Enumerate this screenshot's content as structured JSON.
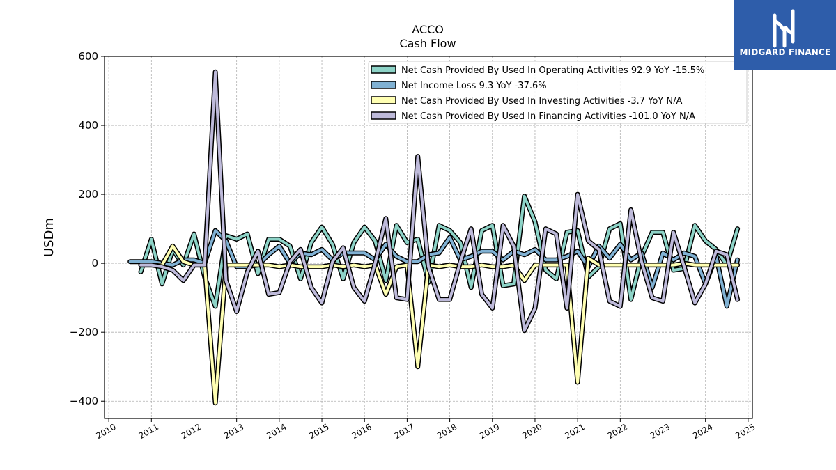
{
  "chart_data": {
    "type": "line",
    "title": "ACCO",
    "subtitle": "Cash Flow",
    "xlabel": "",
    "ylabel": "USDm",
    "xlim": [
      2009.9,
      2025.1
    ],
    "ylim": [
      -450,
      600
    ],
    "yticks": [
      -400,
      -200,
      0,
      200,
      400,
      600
    ],
    "ytick_labels": [
      "−400",
      "−200",
      "0",
      "200",
      "400",
      "600"
    ],
    "xticks": [
      2010,
      2011,
      2012,
      2013,
      2014,
      2015,
      2016,
      2017,
      2018,
      2019,
      2020,
      2021,
      2022,
      2023,
      2024,
      2025
    ],
    "grid": true,
    "legend_position": "top-right",
    "series": [
      {
        "name": "Net Cash Provided By Used In Operating Activities  92.9 YoY -15.5%",
        "color": "#8dd3c7",
        "points": [
          [
            2010.75,
            -25
          ],
          [
            2011.0,
            70
          ],
          [
            2011.25,
            -60
          ],
          [
            2011.5,
            40
          ],
          [
            2011.75,
            -5
          ],
          [
            2012.0,
            85
          ],
          [
            2012.25,
            -40
          ],
          [
            2012.5,
            -125
          ],
          [
            2012.75,
            80
          ],
          [
            2013.0,
            70
          ],
          [
            2013.25,
            85
          ],
          [
            2013.5,
            -30
          ],
          [
            2013.75,
            70
          ],
          [
            2014.0,
            70
          ],
          [
            2014.25,
            50
          ],
          [
            2014.5,
            -45
          ],
          [
            2014.75,
            60
          ],
          [
            2015.0,
            105
          ],
          [
            2015.25,
            55
          ],
          [
            2015.5,
            -45
          ],
          [
            2015.75,
            60
          ],
          [
            2016.0,
            105
          ],
          [
            2016.25,
            65
          ],
          [
            2016.5,
            -50
          ],
          [
            2016.75,
            110
          ],
          [
            2017.0,
            60
          ],
          [
            2017.25,
            70
          ],
          [
            2017.5,
            -55
          ],
          [
            2017.75,
            110
          ],
          [
            2018.0,
            95
          ],
          [
            2018.25,
            60
          ],
          [
            2018.5,
            -70
          ],
          [
            2018.75,
            95
          ],
          [
            2019.0,
            110
          ],
          [
            2019.25,
            -65
          ],
          [
            2019.5,
            -60
          ],
          [
            2019.75,
            195
          ],
          [
            2020.0,
            120
          ],
          [
            2020.25,
            -20
          ],
          [
            2020.5,
            -45
          ],
          [
            2020.75,
            90
          ],
          [
            2021.0,
            95
          ],
          [
            2021.25,
            -40
          ],
          [
            2021.5,
            -10
          ],
          [
            2021.75,
            100
          ],
          [
            2022.0,
            115
          ],
          [
            2022.25,
            -105
          ],
          [
            2022.5,
            20
          ],
          [
            2022.75,
            90
          ],
          [
            2023.0,
            90
          ],
          [
            2023.25,
            -20
          ],
          [
            2023.5,
            -15
          ],
          [
            2023.75,
            110
          ],
          [
            2024.0,
            65
          ],
          [
            2024.25,
            40
          ],
          [
            2024.5,
            -5
          ],
          [
            2024.75,
            100
          ]
        ]
      },
      {
        "name": "Net Income Loss  9.3 YoY -37.6%",
        "color": "#80b1d3",
        "points": [
          [
            2010.5,
            5
          ],
          [
            2010.75,
            5
          ],
          [
            2011.0,
            5
          ],
          [
            2011.25,
            0
          ],
          [
            2011.5,
            -5
          ],
          [
            2011.75,
            10
          ],
          [
            2012.0,
            10
          ],
          [
            2012.25,
            0
          ],
          [
            2012.5,
            95
          ],
          [
            2012.75,
            65
          ],
          [
            2013.0,
            -10
          ],
          [
            2013.25,
            -10
          ],
          [
            2013.5,
            -5
          ],
          [
            2013.75,
            25
          ],
          [
            2014.0,
            50
          ],
          [
            2014.25,
            0
          ],
          [
            2014.5,
            30
          ],
          [
            2014.75,
            25
          ],
          [
            2015.0,
            40
          ],
          [
            2015.25,
            10
          ],
          [
            2015.5,
            30
          ],
          [
            2015.75,
            30
          ],
          [
            2016.0,
            30
          ],
          [
            2016.25,
            10
          ],
          [
            2016.5,
            55
          ],
          [
            2016.75,
            20
          ],
          [
            2017.0,
            5
          ],
          [
            2017.25,
            5
          ],
          [
            2017.5,
            25
          ],
          [
            2017.75,
            30
          ],
          [
            2018.0,
            75
          ],
          [
            2018.25,
            10
          ],
          [
            2018.5,
            20
          ],
          [
            2018.75,
            35
          ],
          [
            2019.0,
            35
          ],
          [
            2019.25,
            10
          ],
          [
            2019.5,
            35
          ],
          [
            2019.75,
            25
          ],
          [
            2020.0,
            40
          ],
          [
            2020.25,
            10
          ],
          [
            2020.5,
            10
          ],
          [
            2020.75,
            20
          ],
          [
            2021.0,
            35
          ],
          [
            2021.25,
            -10
          ],
          [
            2021.5,
            50
          ],
          [
            2021.75,
            15
          ],
          [
            2022.0,
            55
          ],
          [
            2022.25,
            10
          ],
          [
            2022.5,
            30
          ],
          [
            2022.75,
            -70
          ],
          [
            2023.0,
            30
          ],
          [
            2023.25,
            10
          ],
          [
            2023.5,
            30
          ],
          [
            2023.75,
            20
          ],
          [
            2024.0,
            -60
          ],
          [
            2024.25,
            20
          ],
          [
            2024.5,
            -125
          ],
          [
            2024.75,
            10
          ]
        ]
      },
      {
        "name": "Net Cash Provided By Used In Investing Activities  -3.7 YoY N/A",
        "color": "#ffffb3",
        "points": [
          [
            2010.75,
            -5
          ],
          [
            2011.0,
            -5
          ],
          [
            2011.25,
            -5
          ],
          [
            2011.5,
            50
          ],
          [
            2011.75,
            5
          ],
          [
            2012.0,
            -5
          ],
          [
            2012.25,
            -5
          ],
          [
            2012.5,
            -405
          ],
          [
            2012.75,
            -5
          ],
          [
            2013.0,
            -5
          ],
          [
            2013.25,
            -5
          ],
          [
            2013.5,
            -5
          ],
          [
            2013.75,
            -5
          ],
          [
            2014.0,
            -10
          ],
          [
            2014.25,
            -5
          ],
          [
            2014.5,
            -10
          ],
          [
            2014.75,
            -10
          ],
          [
            2015.0,
            -10
          ],
          [
            2015.25,
            -5
          ],
          [
            2015.5,
            -10
          ],
          [
            2015.75,
            -5
          ],
          [
            2016.0,
            -10
          ],
          [
            2016.25,
            -5
          ],
          [
            2016.5,
            -90
          ],
          [
            2016.75,
            -10
          ],
          [
            2017.0,
            -5
          ],
          [
            2017.25,
            -300
          ],
          [
            2017.5,
            -5
          ],
          [
            2017.75,
            -10
          ],
          [
            2018.0,
            -5
          ],
          [
            2018.25,
            -10
          ],
          [
            2018.5,
            -10
          ],
          [
            2018.75,
            -5
          ],
          [
            2019.0,
            -10
          ],
          [
            2019.25,
            -10
          ],
          [
            2019.5,
            -5
          ],
          [
            2019.75,
            -50
          ],
          [
            2020.0,
            -5
          ],
          [
            2020.25,
            -5
          ],
          [
            2020.5,
            -5
          ],
          [
            2020.75,
            -5
          ],
          [
            2021.0,
            -345
          ],
          [
            2021.25,
            15
          ],
          [
            2021.5,
            -5
          ],
          [
            2021.75,
            -5
          ],
          [
            2022.0,
            -5
          ],
          [
            2022.25,
            -5
          ],
          [
            2022.5,
            -5
          ],
          [
            2022.75,
            -5
          ],
          [
            2023.0,
            -5
          ],
          [
            2023.25,
            -5
          ],
          [
            2023.5,
            0
          ],
          [
            2023.75,
            -5
          ],
          [
            2024.0,
            -5
          ],
          [
            2024.25,
            -5
          ],
          [
            2024.5,
            -5
          ],
          [
            2024.75,
            -5
          ]
        ]
      },
      {
        "name": "Net Cash Provided By Used In Financing Activities  -101.0 YoY N/A",
        "color": "#bebada",
        "points": [
          [
            2010.75,
            -5
          ],
          [
            2011.0,
            -5
          ],
          [
            2011.25,
            -10
          ],
          [
            2011.5,
            -20
          ],
          [
            2011.75,
            -50
          ],
          [
            2012.0,
            -5
          ],
          [
            2012.25,
            -5
          ],
          [
            2012.5,
            555
          ],
          [
            2012.75,
            -50
          ],
          [
            2013.0,
            -140
          ],
          [
            2013.25,
            -25
          ],
          [
            2013.5,
            35
          ],
          [
            2013.75,
            -90
          ],
          [
            2014.0,
            -85
          ],
          [
            2014.25,
            5
          ],
          [
            2014.5,
            40
          ],
          [
            2014.75,
            -70
          ],
          [
            2015.0,
            -115
          ],
          [
            2015.25,
            5
          ],
          [
            2015.5,
            45
          ],
          [
            2015.75,
            -70
          ],
          [
            2016.0,
            -110
          ],
          [
            2016.25,
            0
          ],
          [
            2016.5,
            130
          ],
          [
            2016.75,
            -100
          ],
          [
            2017.0,
            -105
          ],
          [
            2017.25,
            310
          ],
          [
            2017.5,
            -10
          ],
          [
            2017.75,
            -105
          ],
          [
            2018.0,
            -105
          ],
          [
            2018.25,
            5
          ],
          [
            2018.5,
            100
          ],
          [
            2018.75,
            -90
          ],
          [
            2019.0,
            -130
          ],
          [
            2019.25,
            110
          ],
          [
            2019.5,
            50
          ],
          [
            2019.75,
            -195
          ],
          [
            2020.0,
            -130
          ],
          [
            2020.25,
            100
          ],
          [
            2020.5,
            85
          ],
          [
            2020.75,
            -130
          ],
          [
            2021.0,
            200
          ],
          [
            2021.25,
            65
          ],
          [
            2021.5,
            40
          ],
          [
            2021.75,
            -110
          ],
          [
            2022.0,
            -125
          ],
          [
            2022.25,
            155
          ],
          [
            2022.5,
            5
          ],
          [
            2022.75,
            -100
          ],
          [
            2023.0,
            -110
          ],
          [
            2023.25,
            90
          ],
          [
            2023.5,
            -10
          ],
          [
            2023.75,
            -115
          ],
          [
            2024.0,
            -60
          ],
          [
            2024.25,
            35
          ],
          [
            2024.5,
            25
          ],
          [
            2024.75,
            -105
          ]
        ]
      }
    ]
  },
  "logo": {
    "text": "MIDGARD FINANCE",
    "bg_color": "#2e5daa"
  }
}
